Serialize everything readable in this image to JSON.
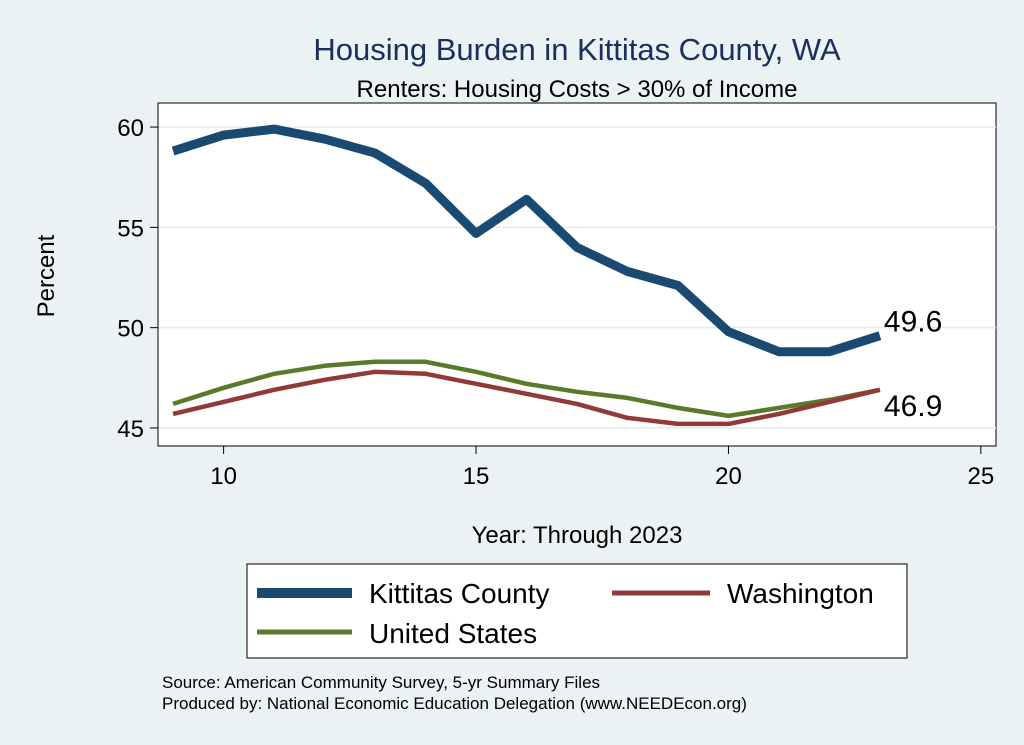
{
  "chart_data": {
    "type": "line",
    "title": "Housing Burden in Kittitas County, WA",
    "subtitle": "Renters: Housing Costs > 30% of Income",
    "xlabel": "Year: Through 2023",
    "ylabel": "Percent",
    "xlim": [
      8.7,
      25.3
    ],
    "ylim": [
      44.1,
      61.2
    ],
    "xticks": [
      10,
      15,
      20,
      25
    ],
    "yticks": [
      45,
      50,
      55,
      60
    ],
    "grid": true,
    "legend_position": "bottom",
    "series": [
      {
        "name": "Kittitas County",
        "color": "#1a4a72",
        "x": [
          9,
          10,
          11,
          12,
          13,
          14,
          15,
          16,
          17,
          18,
          19,
          20,
          21,
          22,
          23
        ],
        "y": [
          58.8,
          59.6,
          59.9,
          59.4,
          58.7,
          57.2,
          54.7,
          56.4,
          54.0,
          52.8,
          52.1,
          49.8,
          48.8,
          48.8,
          49.6
        ]
      },
      {
        "name": "Washington",
        "color": "#913a3a",
        "x": [
          9,
          10,
          11,
          12,
          13,
          14,
          15,
          16,
          17,
          18,
          19,
          20,
          21,
          22,
          23
        ],
        "y": [
          45.7,
          46.3,
          46.9,
          47.4,
          47.8,
          47.7,
          47.2,
          46.7,
          46.2,
          45.5,
          45.2,
          45.2,
          45.7,
          46.3,
          46.9
        ]
      },
      {
        "name": "United States",
        "color": "#5a7a2b",
        "x": [
          9,
          10,
          11,
          12,
          13,
          14,
          15,
          16,
          17,
          18,
          19,
          20,
          21,
          22,
          23
        ],
        "y": [
          46.2,
          47.0,
          47.7,
          48.1,
          48.3,
          48.3,
          47.8,
          47.2,
          46.8,
          46.5,
          46.0,
          45.6,
          46.0,
          46.4,
          46.9
        ]
      }
    ],
    "end_labels": [
      {
        "series": "Kittitas County",
        "text": "49.6"
      },
      {
        "series": "Washington",
        "text": "46.9"
      }
    ],
    "notes": [
      "Source: American Community Survey, 5-yr Summary Files",
      "Produced by: National Economic Education Delegation (www.NEEDEcon.org)"
    ]
  }
}
